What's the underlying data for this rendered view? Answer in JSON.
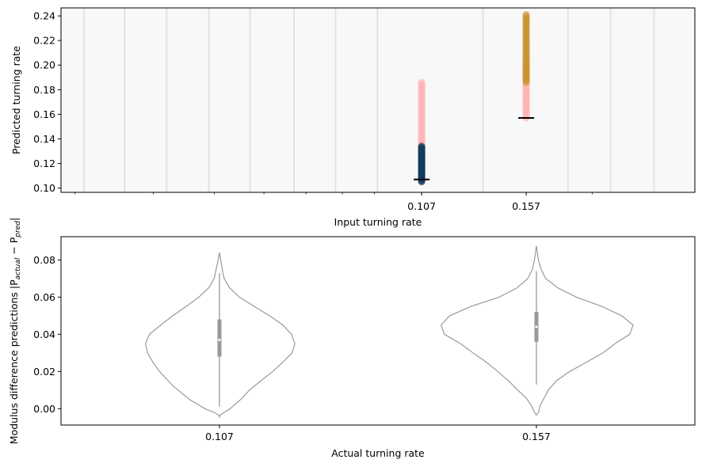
{
  "colors": {
    "figure_bg": "#ffffff",
    "top_panel_bg": "#f8f8f8",
    "grid_band": "#e2e2e2",
    "low_rate_dark": "#163d5c",
    "low_rate_pink": "#ffb4b4",
    "high_rate_gold": "#c99430",
    "high_rate_pink": "#ffb4b4",
    "violin_edge": "#999999",
    "axis": "#000000"
  },
  "chart_data": [
    {
      "type": "scatter",
      "title": "",
      "xlabel": "Input turning rate",
      "ylabel": "Predicted turning rate",
      "x_scale": "log",
      "xlim": [
        0.0285,
        0.2915
      ],
      "ylim": [
        0.0965,
        0.2465
      ],
      "grid": true,
      "x_tick_labels": [
        "0.107",
        "0.157"
      ],
      "x_ticks": [
        0.107,
        0.157
      ],
      "y_ticks": [
        0.1,
        0.12,
        0.14,
        0.16,
        0.18,
        0.2,
        0.22,
        0.24
      ],
      "y_tick_labels": [
        "0.10",
        "0.12",
        "0.14",
        "0.16",
        "0.18",
        "0.20",
        "0.22",
        "0.24"
      ],
      "vertical_gridlines_x": [
        0.031,
        0.036,
        0.042,
        0.049,
        0.057,
        0.067,
        0.078,
        0.091,
        0.134,
        0.183,
        0.214,
        0.251
      ],
      "actual_rate_markers": [
        {
          "x": 0.107,
          "y": 0.107
        },
        {
          "x": 0.157,
          "y": 0.157
        }
      ],
      "series": [
        {
          "x": 0.107,
          "color": "#ffb4b4",
          "y_range": [
            0.133,
            0.186
          ]
        },
        {
          "x": 0.107,
          "color": "#163d5c",
          "y_range": [
            0.105,
            0.134
          ]
        },
        {
          "x": 0.157,
          "color": "#ffb4b4",
          "y_range": [
            0.157,
            0.203
          ]
        },
        {
          "x": 0.157,
          "color": "#c99430",
          "y_range": [
            0.186,
            0.241
          ]
        }
      ]
    },
    {
      "type": "violin",
      "title": "",
      "xlabel": "Actual turning rate",
      "ylabel": "Modulus difference predictions |P",
      "ylabel_sub_1": "actual",
      "ylabel_mid": " − P",
      "ylabel_sub_2": "pred",
      "ylabel_end": "|",
      "categories": [
        "0.107",
        "0.157"
      ],
      "ylim": [
        -0.0088,
        0.0925
      ],
      "y_ticks": [
        0.0,
        0.02,
        0.04,
        0.06,
        0.08
      ],
      "y_tick_labels": [
        "0.00",
        "0.02",
        "0.04",
        "0.06",
        "0.08"
      ],
      "violins": [
        {
          "category": "0.107",
          "median": 0.037,
          "q1": 0.028,
          "q3": 0.048,
          "whisker_low": 0.001,
          "whisker_high": 0.073,
          "profile_left": [
            [
              -0.0045,
              0
            ],
            [
              -0.0035,
              0.01
            ],
            [
              -0.002,
              0.08
            ],
            [
              0.0,
              0.22
            ],
            [
              0.005,
              0.45
            ],
            [
              0.012,
              0.69
            ],
            [
              0.02,
              0.9
            ],
            [
              0.025,
              1.0
            ],
            [
              0.03,
              1.08
            ],
            [
              0.035,
              1.11
            ],
            [
              0.04,
              1.05
            ],
            [
              0.045,
              0.88
            ],
            [
              0.05,
              0.7
            ],
            [
              0.055,
              0.5
            ],
            [
              0.06,
              0.31
            ],
            [
              0.065,
              0.16
            ],
            [
              0.07,
              0.08
            ],
            [
              0.075,
              0.05
            ],
            [
              0.08,
              0.02
            ],
            [
              0.084,
              0
            ]
          ],
          "profile_right": [
            [
              -0.0045,
              0
            ],
            [
              -0.0035,
              0.01
            ],
            [
              -0.002,
              0.07
            ],
            [
              0.0,
              0.16
            ],
            [
              0.005,
              0.32
            ],
            [
              0.01,
              0.45
            ],
            [
              0.015,
              0.62
            ],
            [
              0.02,
              0.8
            ],
            [
              0.025,
              0.95
            ],
            [
              0.03,
              1.09
            ],
            [
              0.035,
              1.13
            ],
            [
              0.04,
              1.08
            ],
            [
              0.045,
              0.95
            ],
            [
              0.05,
              0.75
            ],
            [
              0.055,
              0.52
            ],
            [
              0.06,
              0.3
            ],
            [
              0.065,
              0.15
            ],
            [
              0.07,
              0.07
            ],
            [
              0.075,
              0.04
            ],
            [
              0.08,
              0.02
            ],
            [
              0.084,
              0
            ]
          ]
        },
        {
          "category": "0.157",
          "median": 0.044,
          "q1": 0.036,
          "q3": 0.052,
          "whisker_low": 0.013,
          "whisker_high": 0.074,
          "profile_left": [
            [
              -0.0035,
              0
            ],
            [
              -0.002,
              0.03
            ],
            [
              0.002,
              0.08
            ],
            [
              0.006,
              0.16
            ],
            [
              0.01,
              0.28
            ],
            [
              0.015,
              0.42
            ],
            [
              0.02,
              0.58
            ],
            [
              0.025,
              0.75
            ],
            [
              0.03,
              0.95
            ],
            [
              0.035,
              1.14
            ],
            [
              0.04,
              1.38
            ],
            [
              0.045,
              1.43
            ],
            [
              0.05,
              1.3
            ],
            [
              0.055,
              0.98
            ],
            [
              0.06,
              0.56
            ],
            [
              0.065,
              0.29
            ],
            [
              0.07,
              0.13
            ],
            [
              0.075,
              0.06
            ],
            [
              0.08,
              0.03
            ],
            [
              0.085,
              0.01
            ],
            [
              0.0875,
              0
            ]
          ],
          "profile_right": [
            [
              -0.0035,
              0
            ],
            [
              -0.002,
              0.03
            ],
            [
              0.002,
              0.06
            ],
            [
              0.006,
              0.12
            ],
            [
              0.01,
              0.18
            ],
            [
              0.015,
              0.3
            ],
            [
              0.02,
              0.5
            ],
            [
              0.025,
              0.75
            ],
            [
              0.03,
              1.0
            ],
            [
              0.035,
              1.18
            ],
            [
              0.04,
              1.4
            ],
            [
              0.045,
              1.45
            ],
            [
              0.05,
              1.28
            ],
            [
              0.055,
              0.98
            ],
            [
              0.06,
              0.6
            ],
            [
              0.065,
              0.32
            ],
            [
              0.07,
              0.14
            ],
            [
              0.075,
              0.07
            ],
            [
              0.08,
              0.03
            ],
            [
              0.085,
              0.01
            ],
            [
              0.0875,
              0
            ]
          ]
        }
      ]
    }
  ]
}
